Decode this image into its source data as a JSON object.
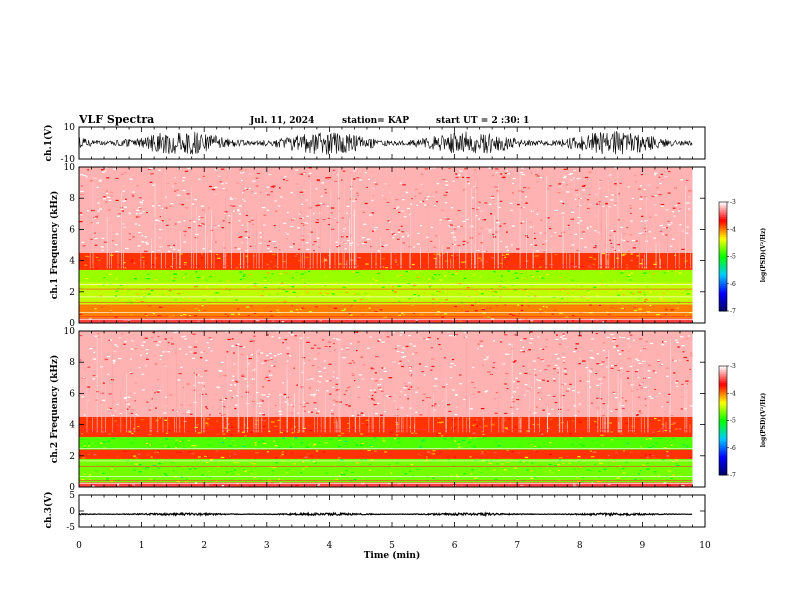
{
  "header": {
    "title": "VLF Spectra",
    "date": "Jul. 11, 2024",
    "station": "station= KAP",
    "start": "start UT = 2 :30: 1"
  },
  "chart_data": [
    {
      "type": "line",
      "panel": "ch1-waveform",
      "ylabel": "ch.1(V)",
      "ylim": [
        -10,
        10
      ],
      "yticks": [
        "10",
        "-10"
      ],
      "x_range_min": [
        0,
        9.8
      ],
      "note_values": "dense broadband noise roughly between -8 and 8 V"
    },
    {
      "type": "heatmap",
      "panel": "ch1-spectrogram",
      "ylabel": "ch.1 Frequency (kHz)",
      "ylim": [
        0,
        10
      ],
      "yticks": [
        "0",
        "2",
        "4",
        "6",
        "8",
        "10"
      ],
      "x_range_min": [
        0,
        9.8
      ],
      "colorbar": {
        "label": "log(PSD)(V²/Hz)",
        "range": [
          -7,
          -3
        ],
        "ticks": [
          "-3",
          "-4",
          "-5",
          "-6",
          "-7"
        ]
      },
      "bands": [
        {
          "f_low": 0.0,
          "f_high": 0.3,
          "level": -3.5
        },
        {
          "f_low": 0.3,
          "f_high": 1.2,
          "level": -4.0
        },
        {
          "f_low": 1.2,
          "f_high": 2.6,
          "level": -4.5
        },
        {
          "f_low": 2.6,
          "f_high": 3.4,
          "level": -4.6
        },
        {
          "f_low": 3.4,
          "f_high": 4.5,
          "level": -3.8
        },
        {
          "f_low": 4.5,
          "f_high": 10.0,
          "level": -3.2
        }
      ]
    },
    {
      "type": "heatmap",
      "panel": "ch2-spectrogram",
      "ylabel": "ch.2 Frequency (kHz)",
      "ylim": [
        0,
        10
      ],
      "yticks": [
        "0",
        "2",
        "4",
        "6",
        "8",
        "10"
      ],
      "x_range_min": [
        0,
        9.8
      ],
      "colorbar": {
        "label": "log(PSD)(V²/Hz)",
        "range": [
          -7,
          -3
        ],
        "ticks": [
          "-3",
          "-4",
          "-5",
          "-6",
          "-7"
        ]
      },
      "bands": [
        {
          "f_low": 0.0,
          "f_high": 0.3,
          "level": -3.5
        },
        {
          "f_low": 0.3,
          "f_high": 1.8,
          "level": -4.7
        },
        {
          "f_low": 1.8,
          "f_high": 2.4,
          "level": -3.8
        },
        {
          "f_low": 2.4,
          "f_high": 3.2,
          "level": -4.8
        },
        {
          "f_low": 3.2,
          "f_high": 4.5,
          "level": -3.8
        },
        {
          "f_low": 4.5,
          "f_high": 10.0,
          "level": -3.2
        }
      ]
    },
    {
      "type": "line",
      "panel": "ch3-waveform",
      "ylabel": "ch.3(V)",
      "ylim": [
        -5,
        5
      ],
      "yticks": [
        "5",
        "0",
        "-5"
      ],
      "x_range_min": [
        0,
        9.8
      ],
      "note_values": "steady offset near -1 V with small oscillation"
    }
  ],
  "xaxis": {
    "label": "Time (min)",
    "lim": [
      0,
      10
    ],
    "ticks": [
      "0",
      "1",
      "2",
      "3",
      "4",
      "5",
      "6",
      "7",
      "8",
      "9",
      "10"
    ]
  },
  "colors": {
    "scale": [
      "#000060",
      "#0000ff",
      "#00c8ff",
      "#00ff00",
      "#ffff00",
      "#ff0000",
      "#ffffff"
    ]
  }
}
